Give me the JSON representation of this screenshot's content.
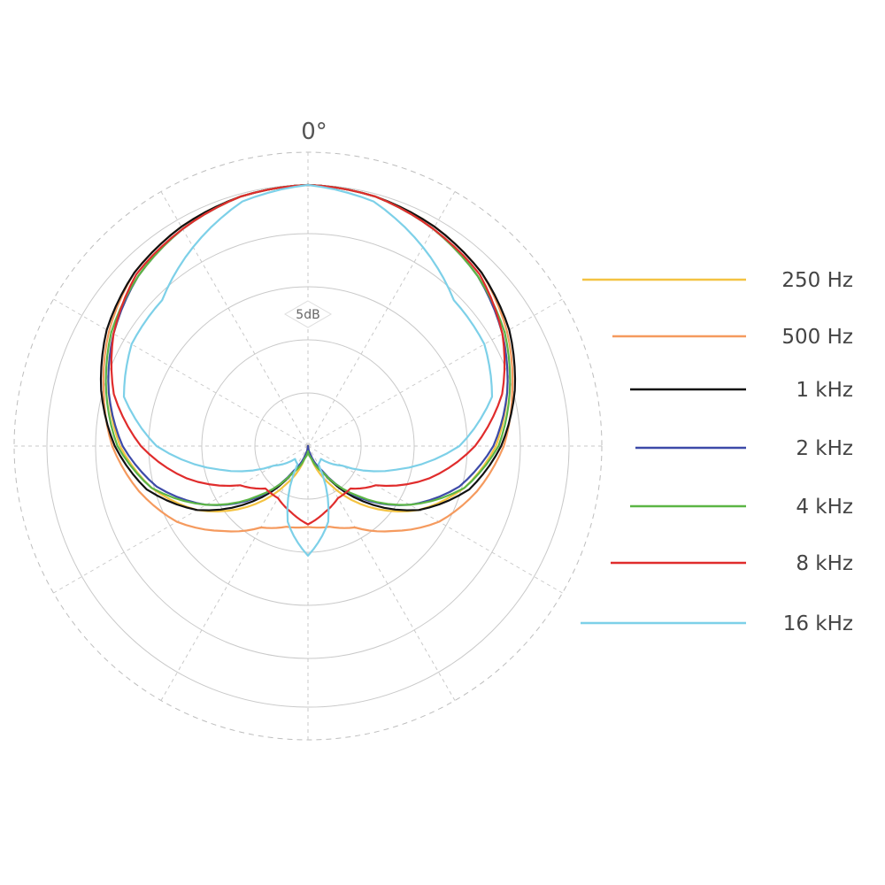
{
  "chart_data": {
    "type": "polar",
    "angle_label": "0°",
    "db_label": "5dB",
    "grid": true,
    "legend_position": "right",
    "series": [
      {
        "name": "250 Hz",
        "color": "#f4c342",
        "angles": [
          0,
          15,
          30,
          45,
          60,
          75,
          90,
          105,
          120,
          135,
          150,
          165,
          180
        ],
        "radius": [
          1.0,
          0.99,
          0.96,
          0.92,
          0.86,
          0.79,
          0.72,
          0.62,
          0.49,
          0.33,
          0.17,
          0.05,
          0.0
        ]
      },
      {
        "name": "500 Hz",
        "color": "#f59a5e",
        "angles": [
          0,
          15,
          30,
          45,
          60,
          75,
          90,
          105,
          120,
          135,
          150,
          165,
          180
        ],
        "radius": [
          1.0,
          0.99,
          0.97,
          0.94,
          0.88,
          0.81,
          0.75,
          0.67,
          0.58,
          0.46,
          0.36,
          0.32,
          0.31
        ]
      },
      {
        "name": "1 kHz",
        "color": "#111111",
        "angles": [
          0,
          15,
          30,
          45,
          60,
          75,
          90,
          105,
          120,
          135,
          150,
          165,
          180
        ],
        "radius": [
          1.0,
          0.99,
          0.97,
          0.94,
          0.89,
          0.82,
          0.74,
          0.64,
          0.49,
          0.3,
          0.12,
          0.03,
          0.0
        ]
      },
      {
        "name": "2 kHz",
        "color": "#3d4aa8",
        "angles": [
          0,
          15,
          30,
          45,
          60,
          75,
          90,
          105,
          120,
          135,
          150,
          165,
          180
        ],
        "radius": [
          1.0,
          0.99,
          0.96,
          0.92,
          0.86,
          0.79,
          0.71,
          0.6,
          0.45,
          0.28,
          0.11,
          0.03,
          0.0
        ]
      },
      {
        "name": "4 kHz",
        "color": "#5bb545",
        "angles": [
          0,
          15,
          30,
          45,
          60,
          75,
          90,
          105,
          120,
          135,
          150,
          165,
          180
        ],
        "radius": [
          1.0,
          0.99,
          0.96,
          0.92,
          0.87,
          0.8,
          0.73,
          0.62,
          0.45,
          0.27,
          0.12,
          0.05,
          0.02
        ]
      },
      {
        "name": "8 kHz",
        "color": "#e02c2c",
        "angles": [
          0,
          15,
          30,
          45,
          60,
          75,
          90,
          105,
          120,
          135,
          150,
          165,
          180
        ],
        "radius": [
          1.0,
          0.99,
          0.96,
          0.93,
          0.86,
          0.77,
          0.64,
          0.48,
          0.3,
          0.23,
          0.23,
          0.26,
          0.3
        ]
      },
      {
        "name": "16 kHz",
        "color": "#7dd0e8",
        "angles": [
          0,
          15,
          30,
          45,
          60,
          75,
          90,
          105,
          120,
          135,
          150,
          165,
          180
        ],
        "radius": [
          1.0,
          0.97,
          0.88,
          0.79,
          0.78,
          0.73,
          0.58,
          0.35,
          0.15,
          0.07,
          0.08,
          0.3,
          0.42
        ]
      }
    ]
  }
}
